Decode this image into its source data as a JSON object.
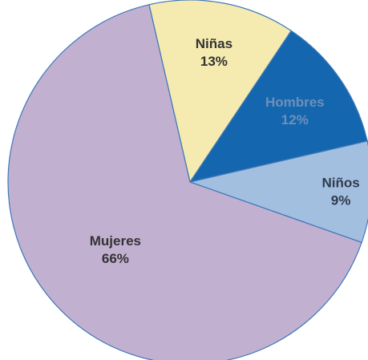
{
  "chart_data": {
    "type": "pie",
    "start_angle_deg": -103,
    "direction": "clockwise",
    "slices": [
      {
        "label": "Niñas",
        "value": 13,
        "value_label": "13%",
        "color": "#f5ebb0",
        "text_color": "#333333"
      },
      {
        "label": "Hombres",
        "value": 12,
        "value_label": "12%",
        "color": "#1467af",
        "text_color": "#6f8fb8"
      },
      {
        "label": "Niños",
        "value": 9,
        "value_label": "9%",
        "color": "#a3bfe0",
        "text_color": "#2f3b4d"
      },
      {
        "label": "Mujeres",
        "value": 66,
        "value_label": "66%",
        "color": "#c2b0d1",
        "text_color": "#333333"
      }
    ],
    "legend": "none"
  }
}
